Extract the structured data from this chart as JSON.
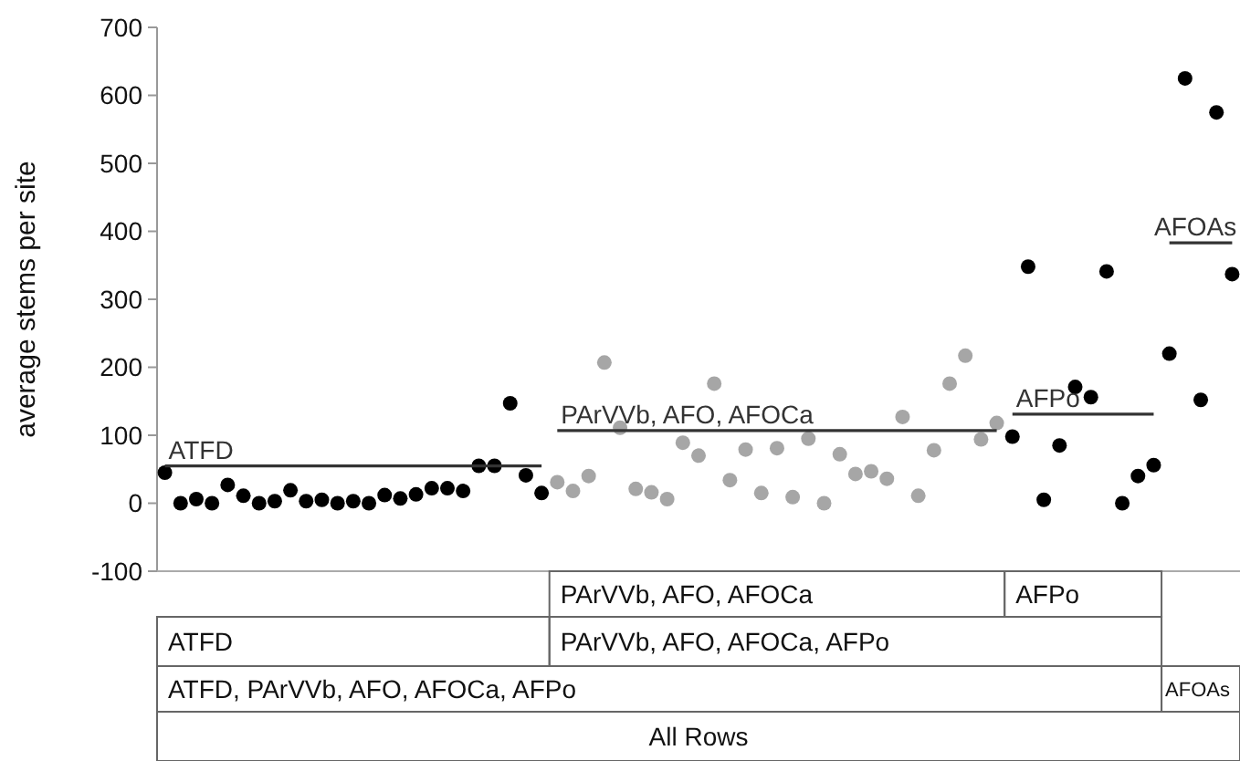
{
  "chart_data": {
    "type": "scatter",
    "ylabel": "average stems per site",
    "categories": [
      null,
      null,
      null,
      null,
      null,
      null,
      null,
      null,
      null,
      null,
      null,
      null,
      null,
      null,
      null,
      null,
      null,
      null,
      null,
      null,
      null,
      null,
      null,
      null,
      null,
      null,
      null,
      null,
      null,
      null,
      null,
      null,
      null,
      null,
      null,
      null,
      null,
      null,
      null,
      null,
      null,
      null,
      null,
      null,
      null,
      null,
      null,
      null,
      null,
      null,
      null,
      null,
      null,
      null,
      null,
      null,
      null,
      null,
      null,
      null,
      null,
      null,
      null,
      null,
      null,
      null,
      null,
      null,
      null
    ],
    "series": [
      {
        "color": "#000000",
        "values": [
          45,
          0,
          6,
          0,
          27,
          11,
          0,
          3,
          19,
          3,
          5,
          0,
          3,
          0,
          12,
          7,
          13,
          22,
          22,
          18,
          55,
          55,
          147,
          41,
          15,
          null,
          null,
          null,
          null,
          null,
          null,
          null,
          null,
          null,
          null,
          null,
          null,
          null,
          null,
          null,
          null,
          null,
          null,
          null,
          null,
          null,
          null,
          null,
          null,
          null,
          null,
          null,
          null,
          null,
          98,
          348,
          5,
          85,
          171,
          156,
          341,
          0,
          40,
          56,
          220,
          625,
          152,
          575,
          337
        ]
      },
      {
        "color": "#a6a6a6",
        "values": [
          null,
          null,
          null,
          null,
          null,
          null,
          null,
          null,
          null,
          null,
          null,
          null,
          null,
          null,
          null,
          null,
          null,
          null,
          null,
          null,
          null,
          null,
          null,
          null,
          null,
          31,
          18,
          40,
          207,
          111,
          21,
          16,
          6,
          89,
          70,
          176,
          34,
          79,
          15,
          81,
          9,
          95,
          0,
          72,
          43,
          47,
          36,
          127,
          11,
          78,
          176,
          217,
          94,
          118,
          null,
          null,
          null,
          null,
          null,
          null,
          null,
          null,
          null,
          null,
          null,
          null,
          null,
          null,
          null
        ]
      },
      {
        "type": "line",
        "name": "ATFD",
        "color": "#333333",
        "marker": "none",
        "values": [
          55,
          55,
          55,
          55,
          55,
          55,
          55,
          55,
          55,
          55,
          55,
          55,
          55,
          55,
          55,
          55,
          55,
          55,
          55,
          55,
          55,
          55,
          55,
          55,
          55,
          null,
          null,
          null,
          null,
          null,
          null,
          null,
          null,
          null,
          null,
          null,
          null,
          null,
          null,
          null,
          null,
          null,
          null,
          null,
          null,
          null,
          null,
          null,
          null,
          null,
          null,
          null,
          null,
          null,
          null,
          null,
          null,
          null,
          null,
          null,
          null,
          null,
          null,
          null,
          null,
          null,
          null,
          null,
          null
        ]
      },
      {
        "type": "line",
        "name": "PArVVb, AFO, AFOCa",
        "color": "#333333",
        "marker": "none",
        "values": [
          null,
          null,
          null,
          null,
          null,
          null,
          null,
          null,
          null,
          null,
          null,
          null,
          null,
          null,
          null,
          null,
          null,
          null,
          null,
          null,
          null,
          null,
          null,
          null,
          null,
          107,
          107,
          107,
          107,
          107,
          107,
          107,
          107,
          107,
          107,
          107,
          107,
          107,
          107,
          107,
          107,
          107,
          107,
          107,
          107,
          107,
          107,
          107,
          107,
          107,
          107,
          107,
          107,
          107,
          null,
          null,
          null,
          null,
          null,
          null,
          null,
          null,
          null,
          null,
          null,
          null,
          null,
          null,
          null
        ]
      },
      {
        "type": "line",
        "name": "AFPo",
        "color": "#333333",
        "marker": "none",
        "values": [
          null,
          null,
          null,
          null,
          null,
          null,
          null,
          null,
          null,
          null,
          null,
          null,
          null,
          null,
          null,
          null,
          null,
          null,
          null,
          null,
          null,
          null,
          null,
          null,
          null,
          null,
          null,
          null,
          null,
          null,
          null,
          null,
          null,
          null,
          null,
          null,
          null,
          null,
          null,
          null,
          null,
          null,
          null,
          null,
          null,
          null,
          null,
          null,
          null,
          null,
          null,
          null,
          null,
          null,
          131,
          131,
          131,
          131,
          131,
          131,
          131,
          131,
          131,
          131,
          null,
          null,
          null,
          null,
          null
        ]
      },
      {
        "type": "line",
        "name": "AFOAs",
        "color": "#333333",
        "marker": "none",
        "values": [
          null,
          null,
          null,
          null,
          null,
          null,
          null,
          null,
          null,
          null,
          null,
          null,
          null,
          null,
          null,
          null,
          null,
          null,
          null,
          null,
          null,
          null,
          null,
          null,
          null,
          null,
          null,
          null,
          null,
          null,
          null,
          null,
          null,
          null,
          null,
          null,
          null,
          null,
          null,
          null,
          null,
          null,
          null,
          null,
          null,
          null,
          null,
          null,
          null,
          null,
          null,
          null,
          null,
          null,
          null,
          null,
          null,
          null,
          null,
          null,
          null,
          null,
          null,
          null,
          383,
          383,
          383,
          383,
          383
        ]
      }
    ],
    "ylim": [
      -100,
      700
    ],
    "yticks": [
      -100,
      0,
      100,
      200,
      300,
      400,
      500,
      600,
      700
    ],
    "marker": "circle",
    "grid": false,
    "annotations": [
      "PArVVb, AFO, AFOCa",
      "AFPo",
      "ATFD",
      "PArVVb, AFO, AFOCa, AFPo",
      "ATFD, PArVVb, AFO, AFOCa, AFPo",
      "AFOAs",
      "All Rows"
    ]
  }
}
